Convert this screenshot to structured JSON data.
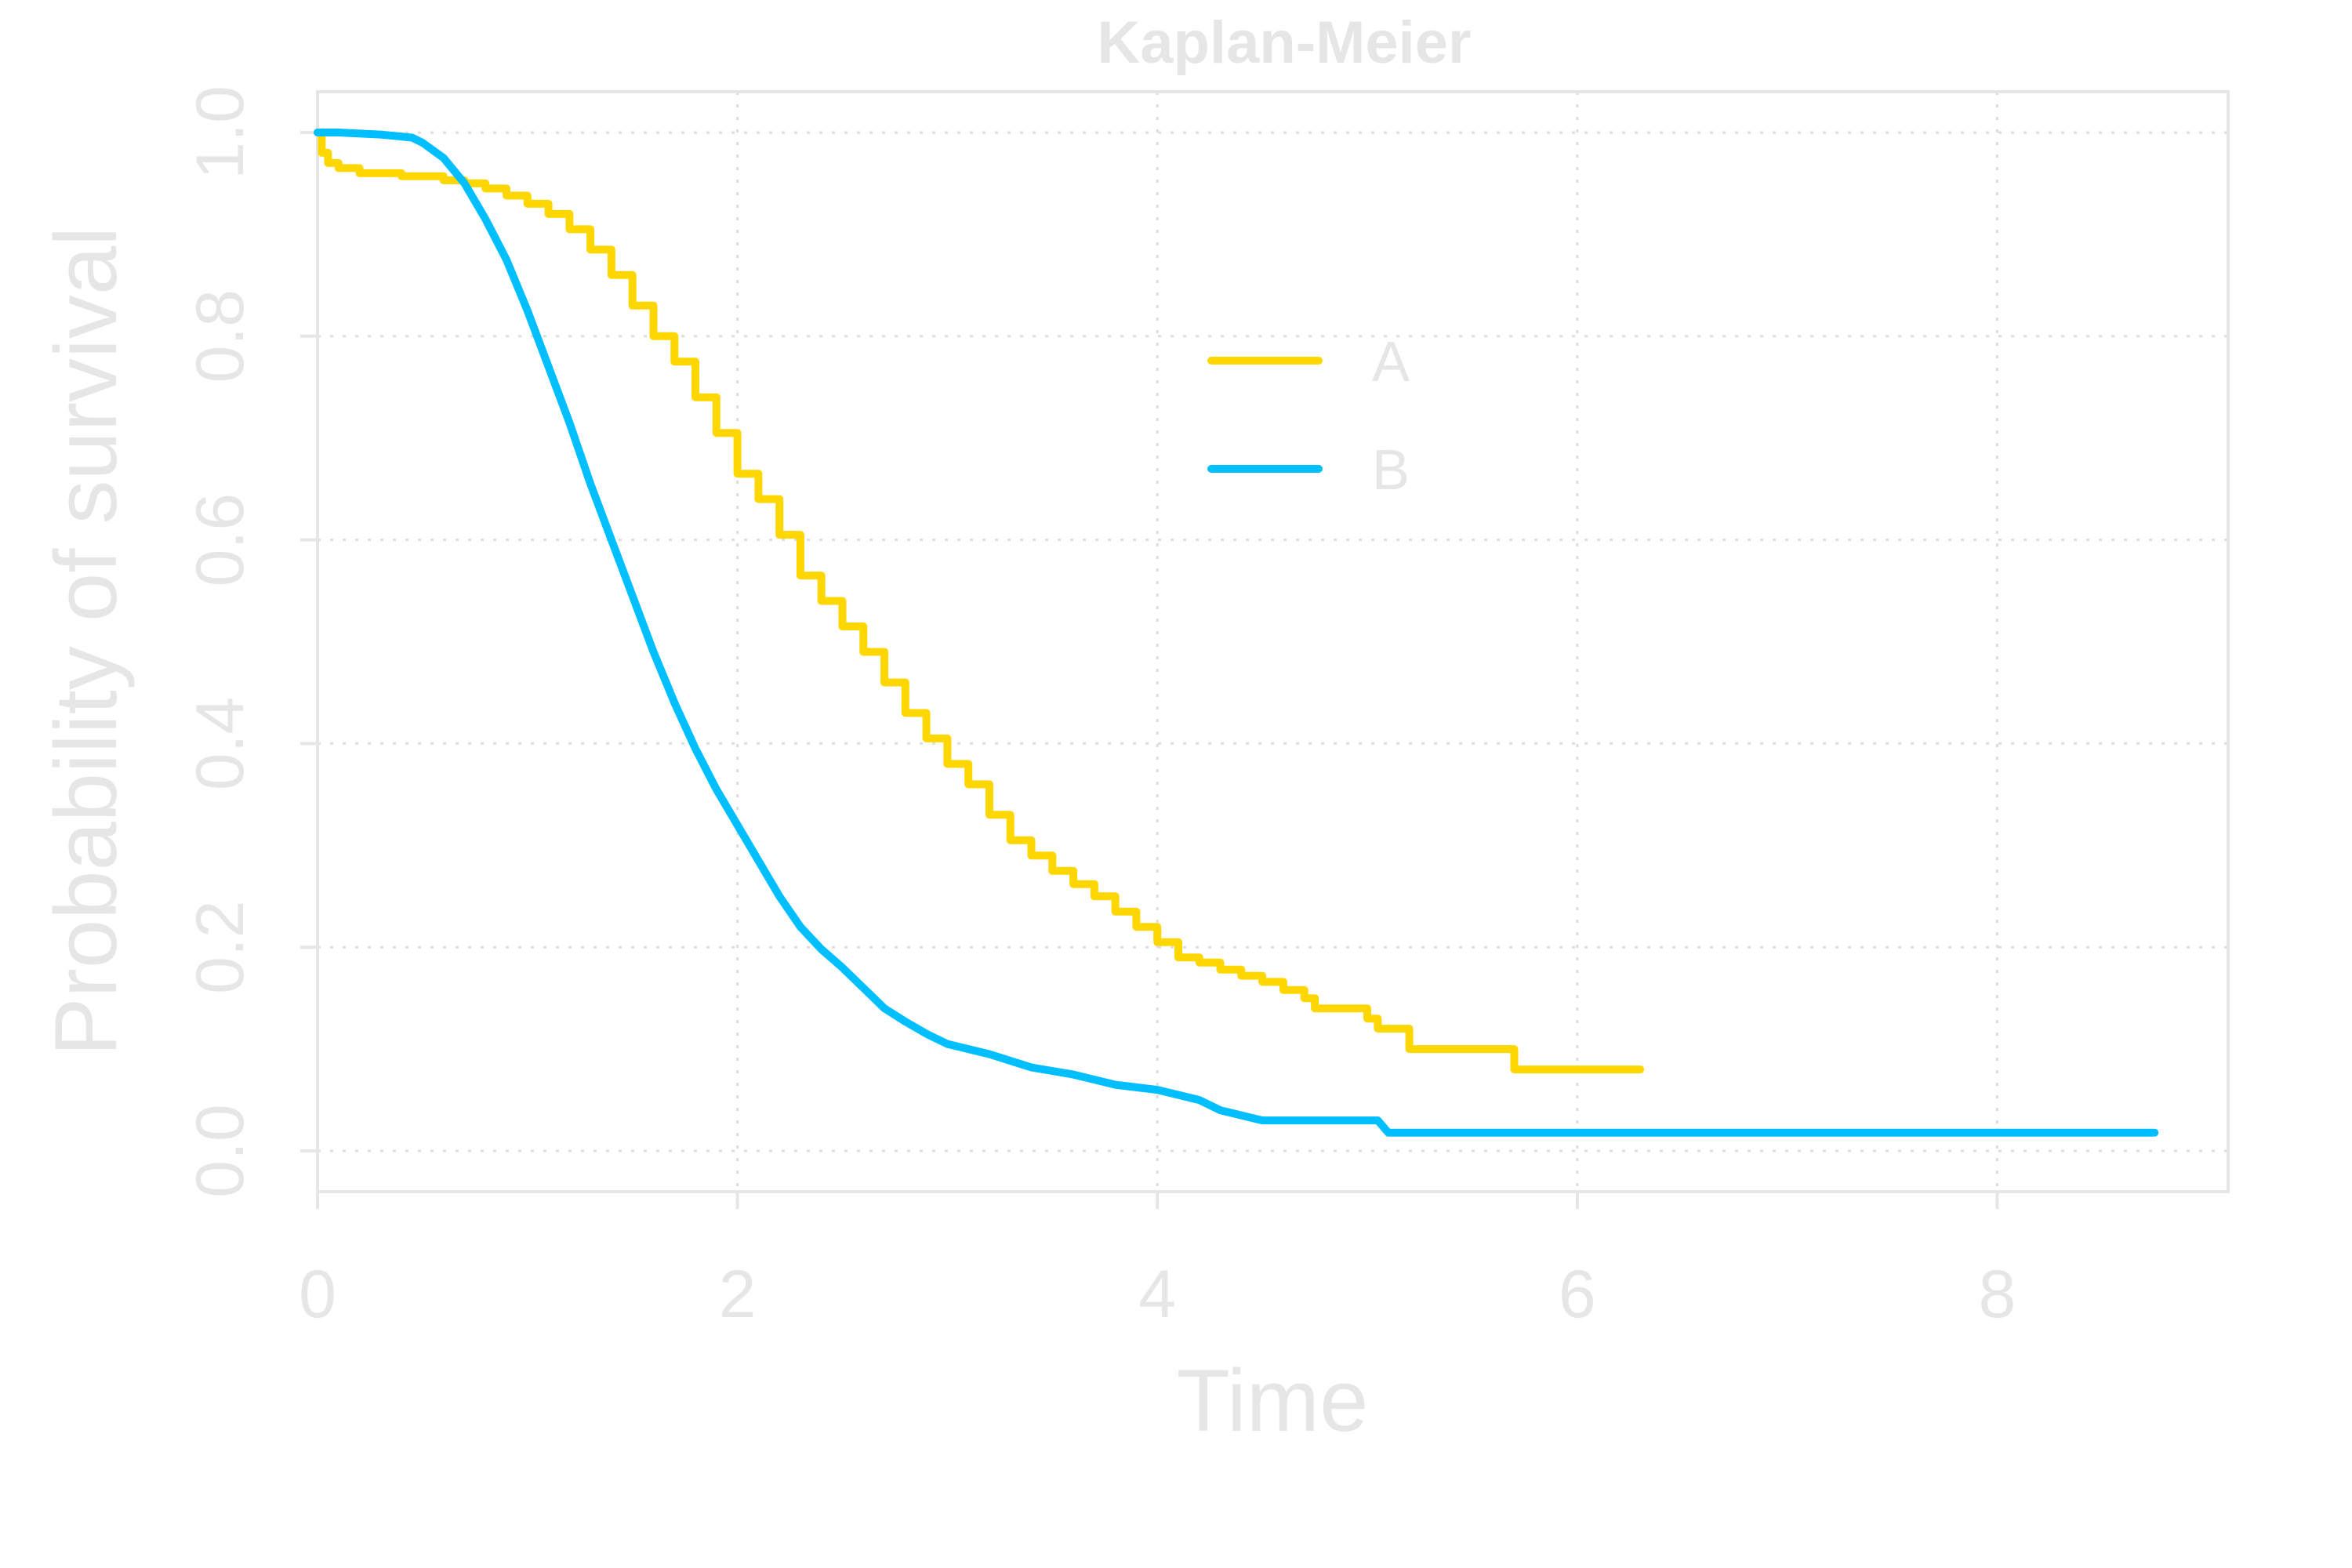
{
  "chart_data": {
    "type": "line",
    "title": "Kaplan-Meier",
    "xlabel": "Time",
    "ylabel": "Probability of survival",
    "xlim": [
      0,
      9.1
    ],
    "ylim": [
      -0.04,
      1.04
    ],
    "x_ticks": [
      0,
      2,
      4,
      6,
      8
    ],
    "y_ticks": [
      0.0,
      0.2,
      0.4,
      0.6,
      0.8,
      1.0
    ],
    "x_tick_labels": [
      "0",
      "2",
      "4",
      "6",
      "8"
    ],
    "y_tick_labels": [
      "0.0",
      "0.2",
      "0.4",
      "0.6",
      "0.8",
      "1.0"
    ],
    "grid": true,
    "legend_position": "top-center",
    "series": [
      {
        "name": "A",
        "color": "#ffd700",
        "step": true,
        "points": [
          [
            0,
            1.0
          ],
          [
            0.02,
            0.98
          ],
          [
            0.05,
            0.97
          ],
          [
            0.1,
            0.965
          ],
          [
            0.2,
            0.96
          ],
          [
            0.4,
            0.957
          ],
          [
            0.6,
            0.953
          ],
          [
            0.7,
            0.95
          ],
          [
            0.8,
            0.945
          ],
          [
            0.9,
            0.938
          ],
          [
            1.0,
            0.93
          ],
          [
            1.1,
            0.92
          ],
          [
            1.2,
            0.905
          ],
          [
            1.3,
            0.885
          ],
          [
            1.4,
            0.86
          ],
          [
            1.5,
            0.83
          ],
          [
            1.6,
            0.8
          ],
          [
            1.7,
            0.775
          ],
          [
            1.8,
            0.74
          ],
          [
            1.9,
            0.705
          ],
          [
            2.0,
            0.665
          ],
          [
            2.1,
            0.64
          ],
          [
            2.2,
            0.605
          ],
          [
            2.3,
            0.565
          ],
          [
            2.4,
            0.54
          ],
          [
            2.5,
            0.515
          ],
          [
            2.6,
            0.49
          ],
          [
            2.7,
            0.46
          ],
          [
            2.8,
            0.43
          ],
          [
            2.9,
            0.405
          ],
          [
            3.0,
            0.38
          ],
          [
            3.1,
            0.36
          ],
          [
            3.2,
            0.33
          ],
          [
            3.3,
            0.305
          ],
          [
            3.4,
            0.29
          ],
          [
            3.5,
            0.275
          ],
          [
            3.6,
            0.262
          ],
          [
            3.7,
            0.25
          ],
          [
            3.8,
            0.235
          ],
          [
            3.9,
            0.22
          ],
          [
            4.0,
            0.205
          ],
          [
            4.1,
            0.19
          ],
          [
            4.2,
            0.185
          ],
          [
            4.3,
            0.178
          ],
          [
            4.4,
            0.172
          ],
          [
            4.5,
            0.166
          ],
          [
            4.6,
            0.158
          ],
          [
            4.7,
            0.15
          ],
          [
            4.75,
            0.14
          ],
          [
            5.0,
            0.13
          ],
          [
            5.05,
            0.12
          ],
          [
            5.2,
            0.1
          ],
          [
            5.7,
            0.08
          ],
          [
            6.3,
            0.08
          ]
        ]
      },
      {
        "name": "B",
        "color": "#00bfff",
        "step": false,
        "points": [
          [
            0,
            1.0
          ],
          [
            0.1,
            1.0
          ],
          [
            0.3,
            0.998
          ],
          [
            0.45,
            0.995
          ],
          [
            0.5,
            0.99
          ],
          [
            0.6,
            0.975
          ],
          [
            0.7,
            0.95
          ],
          [
            0.8,
            0.915
          ],
          [
            0.9,
            0.875
          ],
          [
            1.0,
            0.825
          ],
          [
            1.1,
            0.77
          ],
          [
            1.2,
            0.715
          ],
          [
            1.3,
            0.655
          ],
          [
            1.4,
            0.6
          ],
          [
            1.5,
            0.545
          ],
          [
            1.6,
            0.49
          ],
          [
            1.7,
            0.44
          ],
          [
            1.8,
            0.395
          ],
          [
            1.9,
            0.355
          ],
          [
            2.0,
            0.32
          ],
          [
            2.1,
            0.285
          ],
          [
            2.2,
            0.25
          ],
          [
            2.3,
            0.22
          ],
          [
            2.4,
            0.198
          ],
          [
            2.5,
            0.18
          ],
          [
            2.6,
            0.16
          ],
          [
            2.7,
            0.14
          ],
          [
            2.8,
            0.127
          ],
          [
            2.9,
            0.115
          ],
          [
            3.0,
            0.105
          ],
          [
            3.2,
            0.095
          ],
          [
            3.4,
            0.082
          ],
          [
            3.6,
            0.075
          ],
          [
            3.8,
            0.065
          ],
          [
            4.0,
            0.06
          ],
          [
            4.2,
            0.05
          ],
          [
            4.3,
            0.04
          ],
          [
            4.4,
            0.035
          ],
          [
            4.5,
            0.03
          ],
          [
            5.05,
            0.03
          ],
          [
            5.1,
            0.018
          ],
          [
            8.75,
            0.018
          ]
        ]
      }
    ]
  }
}
